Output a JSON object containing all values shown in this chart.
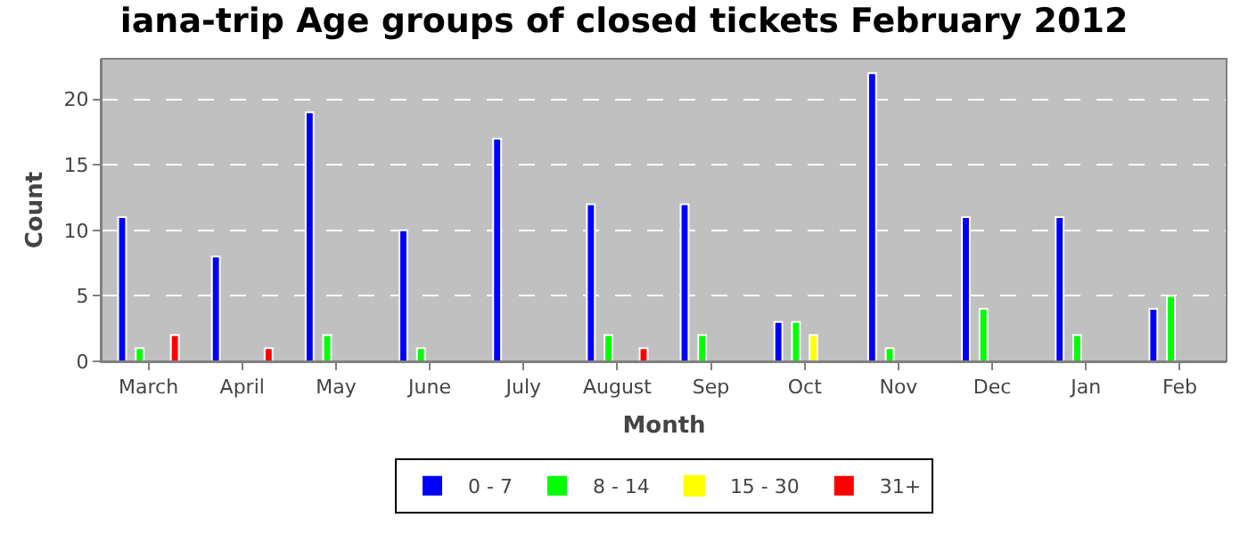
{
  "chart_data": {
    "type": "bar",
    "title": "iana-trip Age groups of closed tickets February 2012",
    "xlabel": "Month",
    "ylabel": "Count",
    "categories": [
      "March",
      "April",
      "May",
      "June",
      "July",
      "August",
      "Sep",
      "Oct",
      "Nov",
      "Dec",
      "Jan",
      "Feb"
    ],
    "series": [
      {
        "name": "0 - 7",
        "color": "#0000ff",
        "values": [
          11,
          8,
          19,
          10,
          17,
          12,
          12,
          3,
          22,
          11,
          11,
          4
        ]
      },
      {
        "name": "8 - 14",
        "color": "#00ff00",
        "values": [
          1,
          0,
          2,
          1,
          0,
          2,
          2,
          3,
          1,
          4,
          2,
          5
        ]
      },
      {
        "name": "15 - 30",
        "color": "#ffff00",
        "values": [
          0,
          0,
          0,
          0,
          0,
          0,
          0,
          2,
          0,
          0,
          0,
          0
        ]
      },
      {
        "name": "31+",
        "color": "#ff0000",
        "values": [
          2,
          1,
          0,
          0,
          0,
          1,
          0,
          0,
          0,
          0,
          0,
          0
        ]
      }
    ],
    "ylim": [
      0,
      23.1
    ],
    "yticks": [
      0,
      5,
      10,
      15,
      20
    ],
    "grid": "y",
    "legend": "bottom"
  }
}
